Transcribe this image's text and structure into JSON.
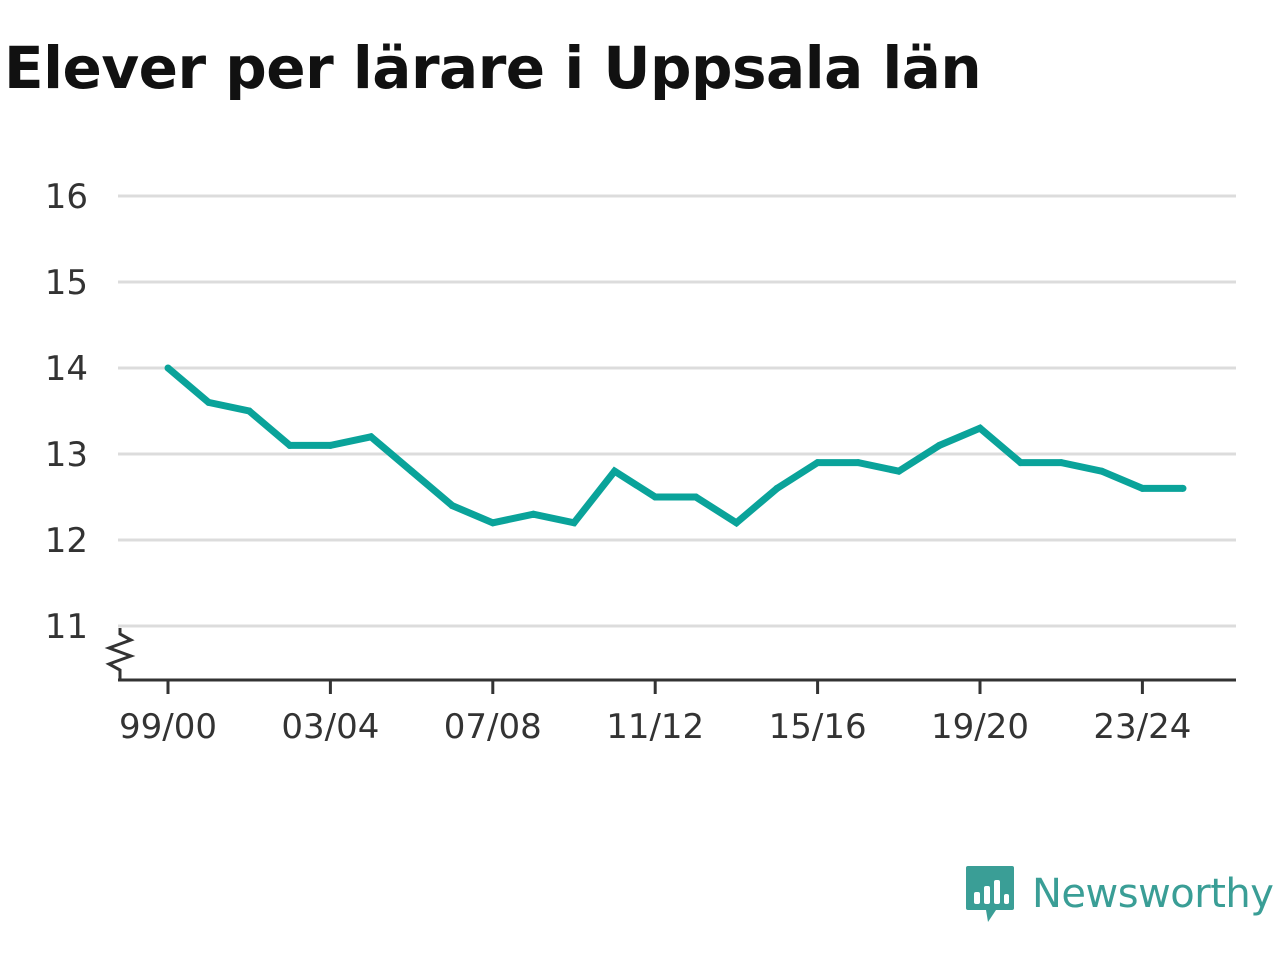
{
  "chart_data": {
    "type": "line",
    "title": "Elever per lärare i Uppsala län",
    "xlabel": "",
    "ylabel": "",
    "categories": [
      "99/00",
      "00/01",
      "01/02",
      "02/03",
      "03/04",
      "04/05",
      "05/06",
      "06/07",
      "07/08",
      "08/09",
      "09/10",
      "10/11",
      "11/12",
      "12/13",
      "13/14",
      "14/15",
      "15/16",
      "16/17",
      "17/18",
      "18/19",
      "19/20",
      "20/21",
      "21/22",
      "22/23",
      "23/24",
      "24/25"
    ],
    "x_tick_labels": [
      "99/00",
      "03/04",
      "07/08",
      "11/12",
      "15/16",
      "19/20",
      "23/24"
    ],
    "y_tick_labels": [
      "11",
      "12",
      "13",
      "14",
      "15",
      "16"
    ],
    "ylim": [
      10.4,
      16
    ],
    "y_axis_break": true,
    "grid": true,
    "legend": "none",
    "series": [
      {
        "color": "#0aa39a",
        "values": [
          14.0,
          13.6,
          13.5,
          13.1,
          13.1,
          13.2,
          12.8,
          12.4,
          12.2,
          12.3,
          12.2,
          12.8,
          12.5,
          12.5,
          12.2,
          12.6,
          12.9,
          12.9,
          12.8,
          13.1,
          13.3,
          12.9,
          12.9,
          12.8,
          12.6,
          12.6
        ]
      }
    ]
  },
  "branding": {
    "name": "Newsworthy",
    "logo_icon": "newsworthy-bar-chart-icon",
    "color": "#3a9e96"
  }
}
